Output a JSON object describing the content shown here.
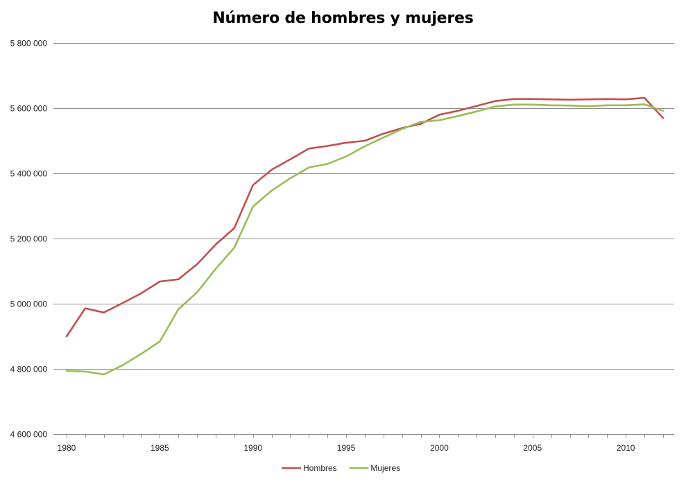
{
  "chart_data": {
    "type": "line",
    "title": "Número de hombres y mujeres",
    "xlabel": "",
    "ylabel": "",
    "x": [
      1980,
      1981,
      1982,
      1983,
      1984,
      1985,
      1986,
      1987,
      1988,
      1989,
      1990,
      1991,
      1992,
      1993,
      1994,
      1995,
      1996,
      1997,
      1998,
      1999,
      2000,
      2001,
      2002,
      2003,
      2004,
      2005,
      2006,
      2007,
      2008,
      2009,
      2010,
      2011,
      2012
    ],
    "xlim": [
      1980,
      2012.6
    ],
    "ylim": [
      4600000,
      5800000
    ],
    "x_ticks": [
      1980,
      1985,
      1990,
      1995,
      2000,
      2005,
      2010
    ],
    "x_tick_labels": [
      "1980",
      "1985",
      "1990",
      "1995",
      "2000",
      "2005",
      "2010"
    ],
    "y_ticks": [
      4600000,
      4800000,
      5000000,
      5200000,
      5400000,
      5600000,
      5800000
    ],
    "y_tick_labels": [
      "4 600 000",
      "4 800 000",
      "5 000 000",
      "5 200 000",
      "5 400 000",
      "5 600 000",
      "5 800 000"
    ],
    "grid": true,
    "legend_position": "bottom",
    "series": [
      {
        "name": "Hombres",
        "color": "#c0504d",
        "values": [
          4900000,
          4986000,
          4973000,
          5002000,
          5032000,
          5068000,
          5075000,
          5121000,
          5182000,
          5232000,
          5364000,
          5411000,
          5443000,
          5476000,
          5484000,
          5494000,
          5500000,
          5522000,
          5539000,
          5552000,
          5580000,
          5592000,
          5607000,
          5622000,
          5628000,
          5628000,
          5627000,
          5626000,
          5627000,
          5628000,
          5627000,
          5632000,
          5570000
        ]
      },
      {
        "name": "Mujeres",
        "color": "#9bbb59",
        "values": [
          4794000,
          4792000,
          4783000,
          4811000,
          4846000,
          4884000,
          4983000,
          5035000,
          5107000,
          5172000,
          5298000,
          5347000,
          5385000,
          5418000,
          5429000,
          5452000,
          5483000,
          5510000,
          5536000,
          5558000,
          5563000,
          5576000,
          5590000,
          5605000,
          5611000,
          5611000,
          5609000,
          5608000,
          5606000,
          5609000,
          5609000,
          5612000,
          5592000
        ]
      }
    ]
  }
}
